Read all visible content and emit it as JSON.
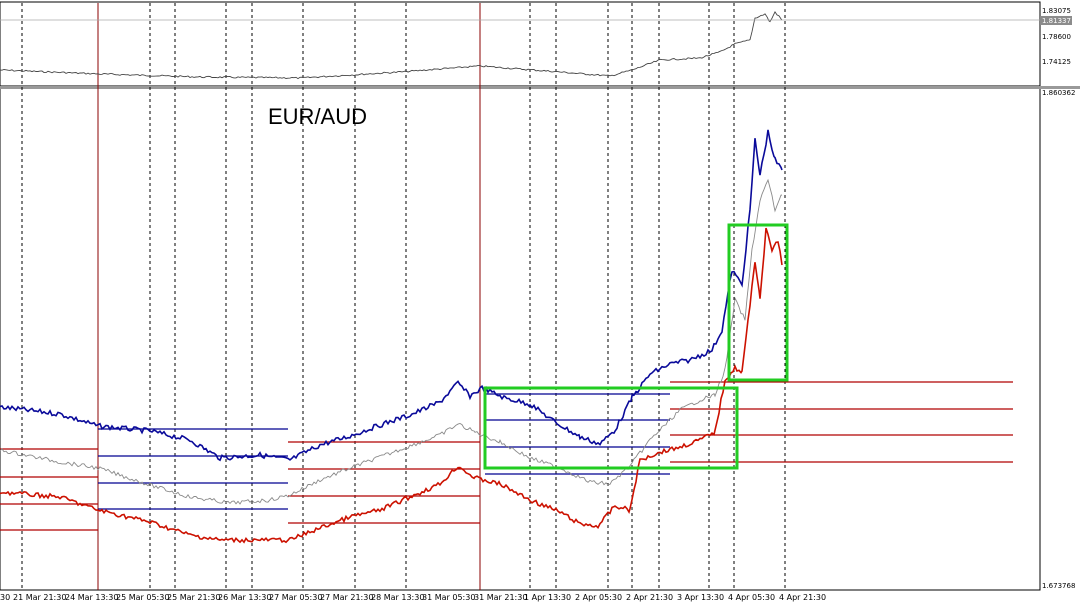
{
  "chart_data": {
    "type": "line",
    "title": "EUR/AUD",
    "grid": true,
    "top_panel": {
      "y_ticks": [
        "1.83075",
        "1.78600",
        "1.74125"
      ],
      "current_price": "1.81337"
    },
    "main_panel": {
      "y_top": "1.860362",
      "y_bottom": "1.673768"
    },
    "x_ticks": [
      "30",
      "21 Mar 21:30",
      "24 Mar 13:30",
      "25 Mar 05:30",
      "25 Mar 21:30",
      "26 Mar 13:30",
      "27 Mar 05:30",
      "27 Mar 21:30",
      "28 Mar 13:30",
      "31 Mar 05:30",
      "31 Mar 21:30",
      "1 Apr 13:30",
      "2 Apr 05:30",
      "2 Apr 21:30",
      "3 Apr 13:30",
      "4 Apr 05:30",
      "4 Apr 21:30"
    ],
    "series": [],
    "colors": {
      "upper": "#0a0a9a",
      "middle": "#8a8a8a",
      "lower": "#cc1100",
      "box": "#22cc22",
      "session_level_upper": "#000090",
      "session_level_lower": "#b00000",
      "separator": "#8b0000"
    }
  }
}
